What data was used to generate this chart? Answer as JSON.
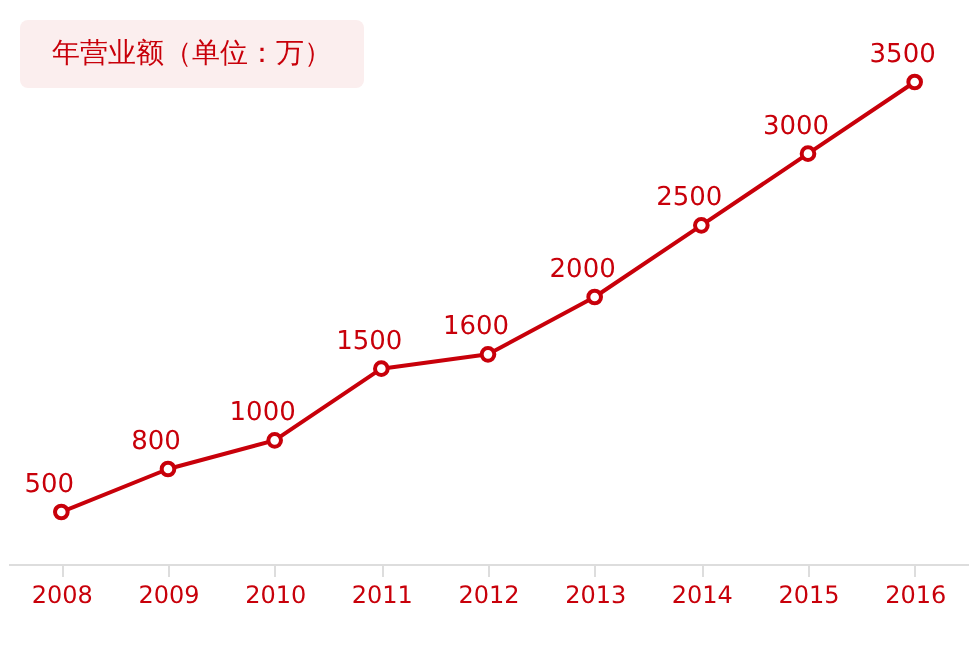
{
  "chart_data": {
    "type": "line",
    "title": "年营业额（单位：万）",
    "categories": [
      "2008",
      "2009",
      "2010",
      "2011",
      "2012",
      "2013",
      "2014",
      "2015",
      "2016"
    ],
    "series": [
      {
        "color": "#c8000a",
        "values": [
          500,
          800,
          1000,
          1500,
          1600,
          2000,
          2500,
          3000,
          3500
        ]
      }
    ],
    "data_labels": true,
    "marker": "circle",
    "line_style": "solid"
  }
}
